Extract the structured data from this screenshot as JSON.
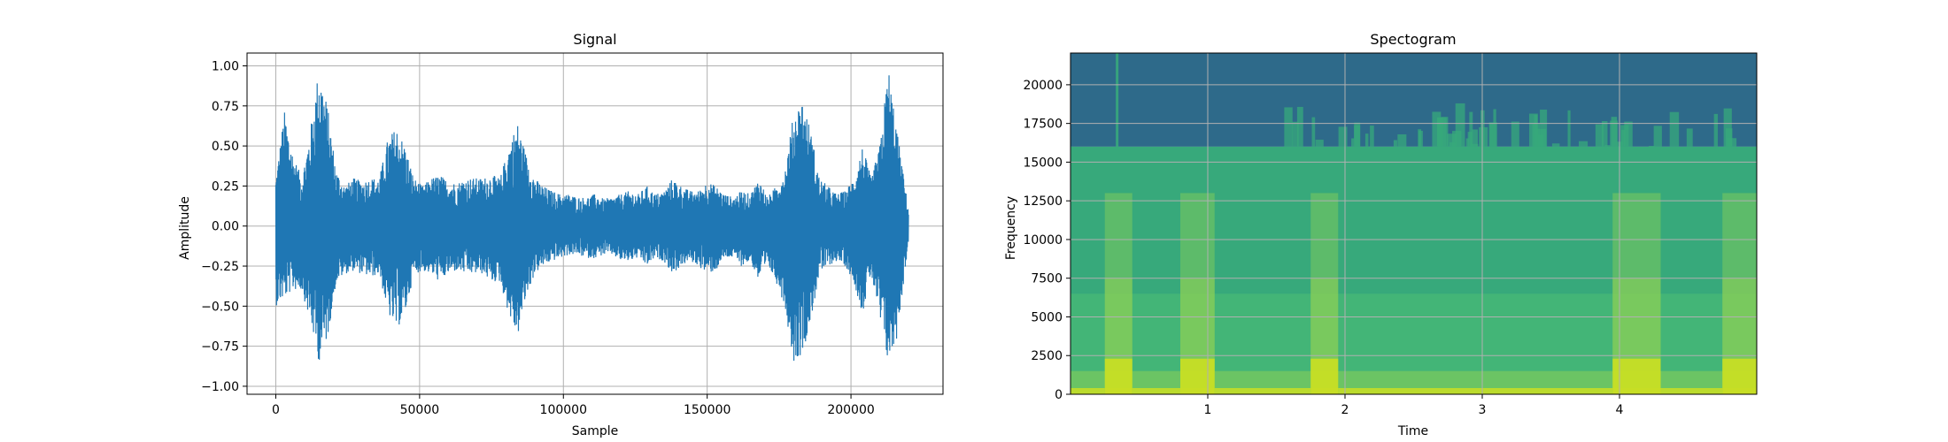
{
  "chart_data": [
    {
      "type": "line",
      "title": "Signal",
      "xlabel": "Sample",
      "ylabel": "Amplitude",
      "xlim": [
        -10000,
        232000
      ],
      "ylim": [
        -1.05,
        1.08
      ],
      "grid": true,
      "color": "#1f77b4",
      "x_ticks": [
        0,
        50000,
        100000,
        150000,
        200000
      ],
      "x_tick_labels": [
        "0",
        "50000",
        "100000",
        "150000",
        "200000"
      ],
      "y_ticks": [
        1.0,
        0.75,
        0.5,
        0.25,
        0.0,
        -0.25,
        -0.5,
        -0.75,
        -1.0
      ],
      "y_tick_labels": [
        "1.00",
        "0.75",
        "0.50",
        "0.25",
        "0.00",
        "−0.25",
        "−0.50",
        "−0.75",
        "−1.00"
      ],
      "series": [
        {
          "x": [
            0,
            3000,
            6000,
            9000,
            12000,
            15000,
            18000,
            21000,
            24000,
            27000,
            30000,
            33000,
            36000,
            39000,
            42000,
            45000,
            48000,
            51000,
            54000,
            57000,
            60000,
            63000,
            66000,
            69000,
            72000,
            75000,
            78000,
            81000,
            84000,
            87000,
            90000,
            93000,
            96000,
            99000,
            102000,
            105000,
            108000,
            111000,
            114000,
            117000,
            120000,
            123000,
            126000,
            129000,
            132000,
            135000,
            138000,
            141000,
            144000,
            147000,
            150000,
            153000,
            156000,
            159000,
            162000,
            165000,
            168000,
            171000,
            174000,
            177000,
            180000,
            183000,
            186000,
            189000,
            192000,
            195000,
            198000,
            201000,
            204000,
            207000,
            210000,
            213000,
            216000,
            220000
          ],
          "ymax": [
            0.3,
            0.72,
            0.45,
            0.3,
            0.6,
            1.0,
            0.75,
            0.35,
            0.25,
            0.3,
            0.28,
            0.3,
            0.3,
            0.55,
            0.62,
            0.5,
            0.3,
            0.25,
            0.3,
            0.32,
            0.28,
            0.27,
            0.3,
            0.3,
            0.3,
            0.32,
            0.3,
            0.5,
            0.65,
            0.45,
            0.3,
            0.25,
            0.22,
            0.2,
            0.2,
            0.18,
            0.18,
            0.2,
            0.17,
            0.18,
            0.2,
            0.22,
            0.2,
            0.25,
            0.2,
            0.22,
            0.3,
            0.25,
            0.22,
            0.22,
            0.28,
            0.25,
            0.2,
            0.18,
            0.22,
            0.2,
            0.3,
            0.18,
            0.25,
            0.35,
            0.7,
            0.8,
            0.6,
            0.3,
            0.25,
            0.2,
            0.22,
            0.3,
            0.5,
            0.3,
            0.5,
            1.0,
            0.6,
            0.1
          ],
          "ymin": [
            -0.5,
            -0.45,
            -0.4,
            -0.4,
            -0.6,
            -0.85,
            -0.7,
            -0.35,
            -0.3,
            -0.28,
            -0.3,
            -0.32,
            -0.3,
            -0.55,
            -0.65,
            -0.55,
            -0.3,
            -0.28,
            -0.3,
            -0.35,
            -0.3,
            -0.28,
            -0.3,
            -0.3,
            -0.3,
            -0.35,
            -0.35,
            -0.55,
            -0.7,
            -0.45,
            -0.3,
            -0.25,
            -0.22,
            -0.2,
            -0.18,
            -0.18,
            -0.2,
            -0.2,
            -0.18,
            -0.18,
            -0.22,
            -0.22,
            -0.2,
            -0.25,
            -0.2,
            -0.22,
            -0.3,
            -0.25,
            -0.22,
            -0.25,
            -0.3,
            -0.28,
            -0.2,
            -0.2,
            -0.25,
            -0.22,
            -0.35,
            -0.25,
            -0.35,
            -0.5,
            -0.85,
            -0.8,
            -0.6,
            -0.3,
            -0.25,
            -0.22,
            -0.25,
            -0.35,
            -0.55,
            -0.3,
            -0.6,
            -0.87,
            -0.7,
            -0.1
          ]
        }
      ]
    },
    {
      "type": "heatmap",
      "title": "Spectogram",
      "xlabel": "Time",
      "ylabel": "Frequency",
      "xlim": [
        0,
        5.0
      ],
      "ylim": [
        0,
        22050
      ],
      "grid": true,
      "x_ticks": [
        1,
        2,
        3,
        4
      ],
      "x_tick_labels": [
        "1",
        "2",
        "3",
        "4"
      ],
      "y_ticks": [
        0,
        2500,
        5000,
        7500,
        10000,
        12500,
        15000,
        17500,
        20000
      ],
      "y_tick_labels": [
        "0",
        "2500",
        "5000",
        "7500",
        "10000",
        "12500",
        "15000",
        "17500",
        "20000"
      ],
      "colors": {
        "top": "#2e6a8a",
        "mid": "#37a97b",
        "band": "#46b877",
        "low": "#8cd056",
        "bright": "#cfe11f"
      },
      "cutoff_hz": 16000,
      "speech_segments": [
        [
          0.25,
          0.45
        ],
        [
          0.8,
          1.05
        ],
        [
          1.75,
          1.95
        ],
        [
          3.95,
          4.3
        ],
        [
          4.75,
          5.0
        ]
      ]
    }
  ]
}
